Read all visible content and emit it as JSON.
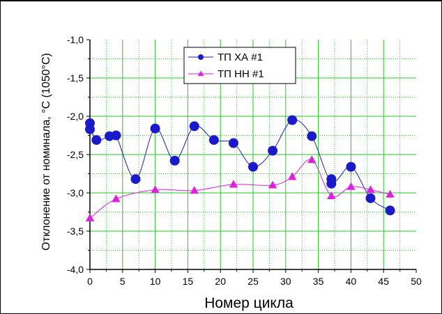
{
  "chart_data": {
    "type": "scatter",
    "title": "",
    "xlabel": "Номер цикла",
    "ylabel": "Отклонение от номинала, °С (1050°С)",
    "xlim": [
      0,
      50
    ],
    "ylim": [
      -4.0,
      -1.0
    ],
    "x_ticks": [
      "0",
      "5",
      "10",
      "15",
      "20",
      "25",
      "30",
      "35",
      "40",
      "45",
      "50"
    ],
    "y_ticks": [
      "-1,0",
      "-1,5",
      "-2,0",
      "-2,5",
      "-3,0",
      "-3,5",
      "-4,0"
    ],
    "grid": true,
    "legend_position": "top-center",
    "series": [
      {
        "name": "ТП ХА #1",
        "color": "#1a1acc",
        "marker": "circle",
        "x": [
          0,
          0,
          1,
          3,
          4,
          7,
          10,
          13,
          16,
          19,
          22,
          25,
          28,
          31,
          34,
          37,
          37,
          40,
          43,
          46
        ],
        "y": [
          -2.09,
          -2.17,
          -2.31,
          -2.26,
          -2.25,
          -2.82,
          -2.16,
          -2.58,
          -2.13,
          -2.31,
          -2.35,
          -2.66,
          -2.45,
          -2.05,
          -2.26,
          -2.82,
          -2.88,
          -2.66,
          -3.07,
          -3.23
        ]
      },
      {
        "name": "ТП НН #1",
        "color": "#e020e0",
        "marker": "triangle",
        "x": [
          0,
          4,
          10,
          16,
          22,
          28,
          31,
          34,
          37,
          40,
          43,
          46
        ],
        "y": [
          -3.33,
          -3.08,
          -2.96,
          -2.97,
          -2.89,
          -2.9,
          -2.79,
          -2.57,
          -3.04,
          -2.92,
          -2.96,
          -3.02
        ]
      }
    ]
  }
}
